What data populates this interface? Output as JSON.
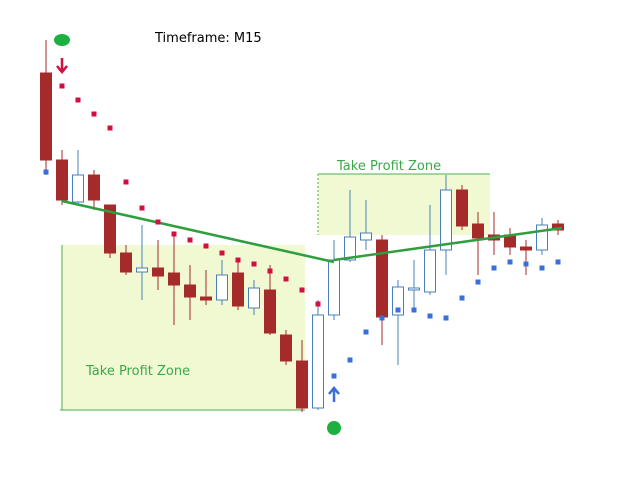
{
  "chart_data": {
    "type": "candlestick",
    "title": "Timeframe: M15",
    "annotations": [
      "Take Profit Zone",
      "Take Profit Zone"
    ],
    "open": [
      407,
      320,
      278,
      305,
      275,
      227,
      208,
      212,
      207,
      195,
      183,
      180,
      207,
      172,
      190,
      145,
      119,
      72,
      165,
      220,
      240,
      240,
      165,
      190,
      188,
      230,
      290,
      256,
      245,
      245,
      233,
      230,
      256
    ],
    "high": [
      440,
      330,
      330,
      310,
      275,
      235,
      255,
      240,
      245,
      215,
      210,
      220,
      220,
      200,
      215,
      150,
      140,
      180,
      240,
      290,
      280,
      245,
      200,
      220,
      275,
      305,
      295,
      268,
      268,
      252,
      240,
      262,
      260
    ],
    "low": [
      305,
      275,
      275,
      270,
      222,
      205,
      180,
      190,
      155,
      160,
      175,
      175,
      170,
      165,
      145,
      115,
      68,
      70,
      160,
      218,
      230,
      135,
      115,
      170,
      185,
      205,
      250,
      205,
      225,
      225,
      205,
      225,
      245
    ],
    "close": [
      320,
      280,
      305,
      280,
      227,
      208,
      212,
      204,
      195,
      183,
      180,
      205,
      174,
      192,
      147,
      119,
      72,
      165,
      220,
      243,
      247,
      163,
      193,
      192,
      230,
      290,
      254,
      242,
      240,
      233,
      230,
      255,
      250
    ],
    "up_color": "#ffffff",
    "up_edge": "#4a7ebb",
    "down_color": "#a52a2a",
    "series": [
      {
        "color": "#d01040",
        "values": [
          null,
          394,
          380,
          366,
          352,
          298,
          272,
          258,
          246,
          240,
          234,
          227,
          220,
          216,
          209,
          201,
          190,
          176,
          null,
          null,
          null,
          null,
          null,
          null,
          null,
          null,
          null,
          null,
          null,
          null,
          null,
          null,
          null
        ]
      },
      {
        "color": "#3a6fd8",
        "values": [
          308,
          null,
          null,
          null,
          null,
          null,
          null,
          null,
          null,
          null,
          null,
          null,
          null,
          null,
          null,
          null,
          null,
          null,
          104,
          120,
          148,
          162,
          170,
          170,
          164,
          162,
          182,
          198,
          212,
          218,
          216,
          212,
          218
        ]
      }
    ]
  }
}
